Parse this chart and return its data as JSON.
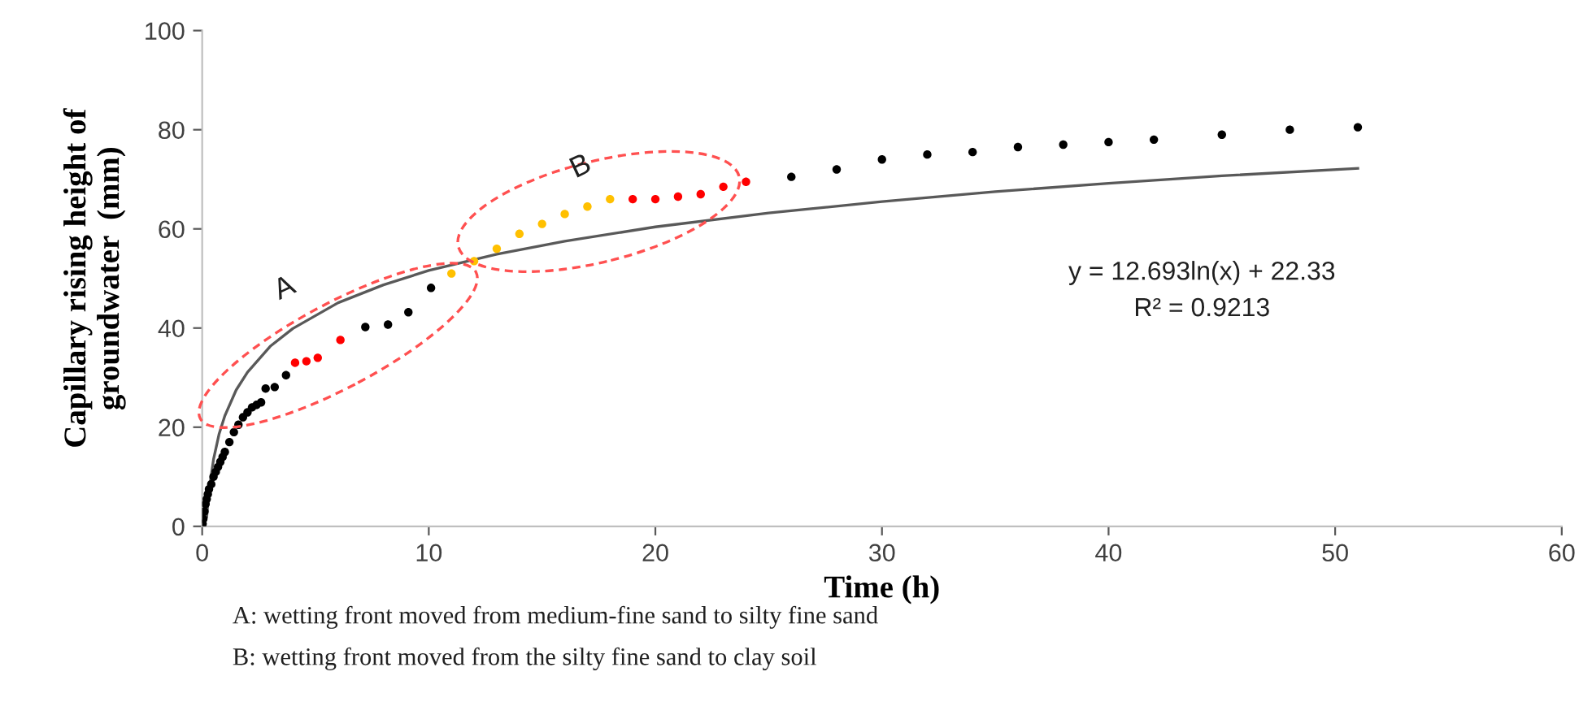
{
  "chart_data": {
    "type": "scatter",
    "xlabel": "Time (h)",
    "ylabel": "Capillary rising height of\ngroundwater  (mm)",
    "xlim": [
      0,
      60
    ],
    "xticks": [
      0,
      10,
      20,
      30,
      40,
      50,
      60
    ],
    "ylim": [
      0,
      100
    ],
    "yticks": [
      0,
      20,
      40,
      60,
      80,
      100
    ],
    "grid": false,
    "marker": "circle",
    "series": [
      {
        "color": "#000000",
        "x": [
          0.02,
          0.05,
          0.1,
          0.15,
          0.2,
          0.25,
          0.3,
          0.4,
          0.5,
          0.6,
          0.7,
          0.8,
          0.9,
          1.0,
          1.2,
          1.4,
          1.6,
          1.8,
          2.0,
          2.2,
          2.4,
          2.6,
          2.8,
          3.2,
          3.7,
          7.2,
          8.2,
          9.1,
          10.1,
          26,
          28,
          30,
          32,
          34,
          36,
          38,
          40,
          42,
          45,
          48,
          51
        ],
        "values": [
          0.5,
          1.5,
          3,
          4.5,
          5.5,
          6.5,
          7.5,
          8.5,
          10,
          11,
          12,
          13,
          14,
          15,
          17,
          19,
          20.5,
          22,
          23,
          24,
          24.5,
          25,
          27.8,
          28.1,
          30.5,
          40.2,
          40.7,
          43.2,
          48.1,
          70.5,
          72,
          74,
          75,
          75.5,
          76.5,
          77,
          77.5,
          78,
          79,
          80,
          80.5
        ]
      },
      {
        "color": "#ff0000",
        "x": [
          4.1,
          4.6,
          5.1,
          6.1,
          19,
          20,
          21,
          22,
          23,
          24
        ],
        "values": [
          33,
          33.3,
          34,
          37.6,
          66,
          66,
          66.5,
          67,
          68.5,
          69.5
        ]
      },
      {
        "color": "#ffc000",
        "x": [
          11,
          12,
          13,
          14,
          15,
          16,
          17,
          18
        ],
        "values": [
          51,
          53.5,
          56,
          59,
          61,
          63,
          64.5,
          66
        ]
      },
      {
        "type": "line",
        "marker": "none",
        "color": "#595959",
        "x": [
          0.2,
          0.3,
          0.5,
          0.75,
          1,
          1.5,
          2,
          3,
          4,
          6,
          8,
          10,
          13,
          16,
          20,
          25,
          30,
          35,
          40,
          45,
          51
        ],
        "values": [
          1.9,
          7.1,
          13.5,
          18.7,
          22.3,
          27.5,
          31.1,
          36.3,
          39.9,
          45.1,
          48.7,
          51.6,
          54.9,
          57.5,
          60.4,
          63.2,
          65.5,
          67.5,
          69.2,
          70.7,
          72.2
        ]
      }
    ],
    "annotations": [
      "A",
      "B",
      "y = 12.693ln(x) + 22.33",
      "R² = 0.9213",
      "A: wetting front moved from medium-fine sand to silty fine sand",
      "B: wetting front moved from the silty fine sand to clay soil"
    ]
  }
}
